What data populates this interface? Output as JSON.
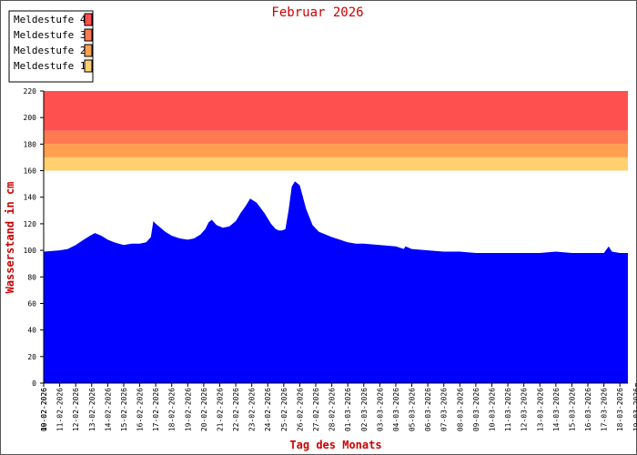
{
  "chart_data": {
    "type": "area",
    "title": "Februar 2026",
    "xlabel": "Tag des Monats",
    "ylabel": "Wasserstand in cm",
    "ylim": [
      0,
      220
    ],
    "yticks": [
      0,
      20,
      40,
      60,
      80,
      100,
      120,
      140,
      160,
      180,
      200,
      220
    ],
    "x_range_days": [
      0,
      36.5
    ],
    "xtick_labels": [
      "10-02-2026",
      "11-02-2026",
      "12-02-2026",
      "13-02-2026",
      "14-02-2026",
      "15-02-2026",
      "16-02-2026",
      "17-02-2026",
      "18-02-2026",
      "19-02-2026",
      "20-02-2026",
      "21-02-2026",
      "22-02-2026",
      "23-02-2026",
      "24-02-2026",
      "25-02-2026",
      "26-02-2026",
      "27-02-2026",
      "28-02-2026",
      "01-03-2026",
      "02-03-2026",
      "03-03-2026",
      "04-03-2026",
      "05-03-2026",
      "06-03-2026",
      "07-03-2026",
      "08-03-2026",
      "09-03-2026",
      "10-03-2026",
      "11-03-2026",
      "12-03-2026",
      "13-03-2026",
      "14-03-2026",
      "15-03-2026",
      "16-03-2026",
      "17-03-2026",
      "18-03-2026",
      "19-03-2026"
    ],
    "overlap_tick_label": "09-02-2026",
    "thresholds": [
      {
        "name": "Meldestufe 4",
        "from": 190,
        "to": 220,
        "color": "#ff5050"
      },
      {
        "name": "Meldestufe 3",
        "from": 180,
        "to": 190,
        "color": "#ff7a50"
      },
      {
        "name": "Meldestufe 2",
        "from": 170,
        "to": 180,
        "color": "#ffa050"
      },
      {
        "name": "Meldestufe 1",
        "from": 160,
        "to": 170,
        "color": "#ffd070"
      }
    ],
    "series": [
      {
        "color": "#0000ff",
        "x": [
          0,
          1,
          1.5,
          2,
          2.5,
          2.9,
          3.2,
          3.6,
          4,
          4.4,
          5,
          5.5,
          6,
          6.4,
          6.7,
          6.85,
          7,
          7.3,
          7.6,
          8,
          8.5,
          9,
          9.4,
          9.8,
          10.1,
          10.3,
          10.5,
          10.8,
          11.2,
          11.6,
          12,
          12.3,
          12.6,
          12.9,
          13.3,
          13.8,
          14.2,
          14.5,
          14.7,
          14.9,
          15.1,
          15.3,
          15.5,
          15.7,
          16,
          16.4,
          16.8,
          17.2,
          17.6,
          18,
          18.5,
          19,
          19.5,
          20,
          21,
          22,
          22.5,
          22.6,
          23,
          24,
          25,
          26,
          27,
          28,
          29,
          30,
          31,
          32,
          33,
          34,
          35,
          35.3,
          35.5,
          36,
          36.5
        ],
        "values": [
          99,
          100,
          101,
          104,
          108,
          111,
          113,
          111,
          108,
          106,
          104,
          105,
          105,
          106,
          110,
          122,
          120,
          117,
          114,
          111,
          109,
          108,
          109,
          112,
          116,
          121,
          123,
          119,
          117,
          118,
          122,
          128,
          133,
          139,
          136,
          128,
          120,
          116,
          115,
          115,
          116,
          130,
          148,
          152,
          149,
          131,
          119,
          114,
          112,
          110,
          108,
          106,
          105,
          105,
          104,
          103,
          101,
          103,
          101,
          100,
          99,
          99,
          98,
          98,
          98,
          98,
          98,
          99,
          98,
          98,
          98,
          103,
          99,
          98,
          98
        ]
      }
    ],
    "grid": false,
    "legend_position": "top-left"
  }
}
